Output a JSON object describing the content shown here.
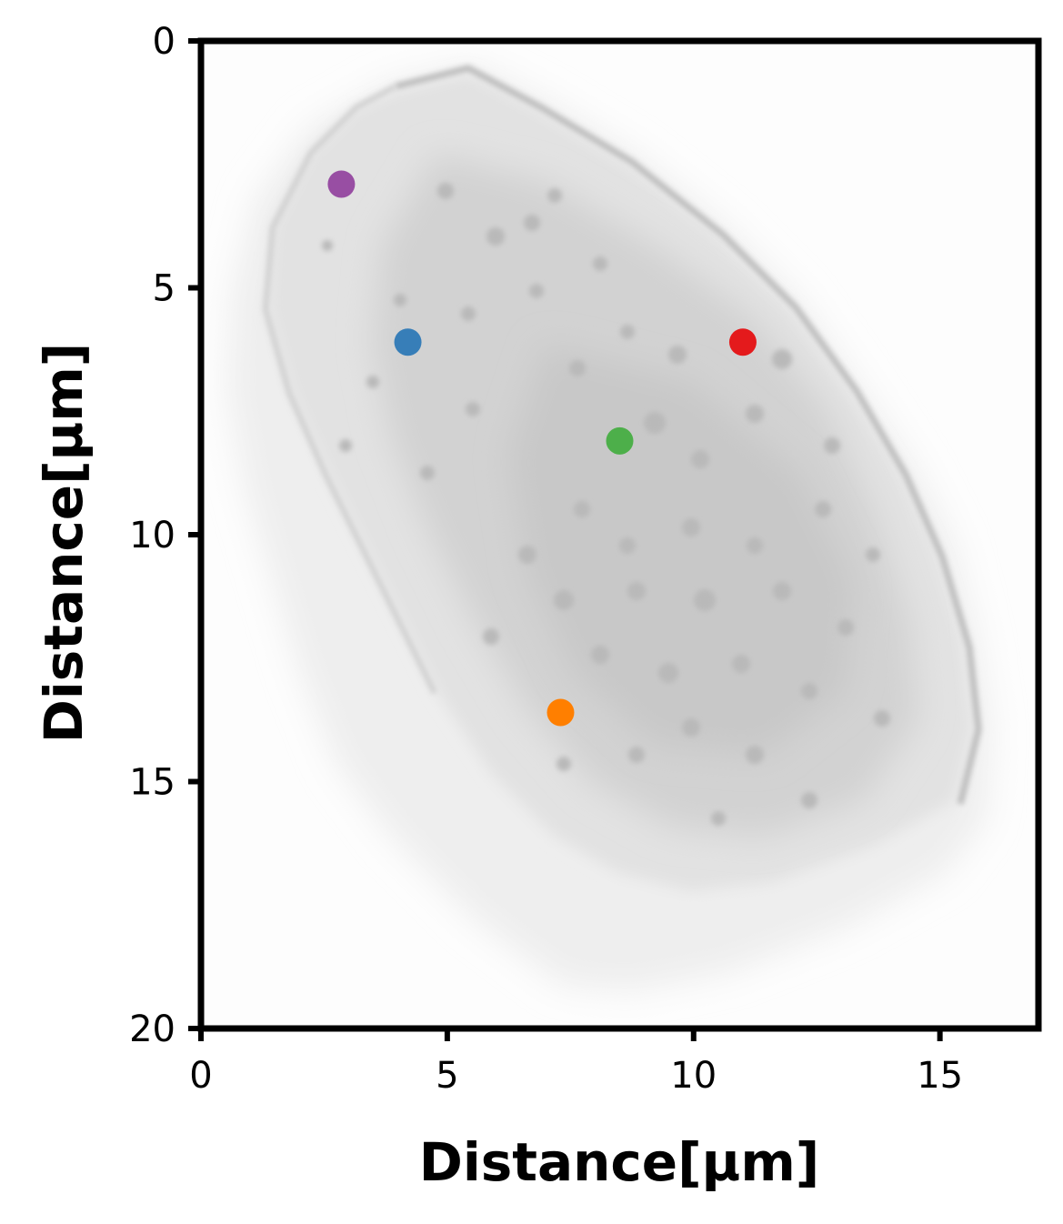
{
  "chart_data": {
    "type": "scatter",
    "title": "",
    "xlabel": "Distance[µm]",
    "ylabel": "Distance[µm]",
    "xlim": [
      0,
      17
    ],
    "ylim": [
      20,
      0
    ],
    "y_inverted": true,
    "x_ticks": [
      0,
      5,
      10,
      15
    ],
    "y_ticks": [
      0,
      5,
      10,
      15,
      20
    ],
    "grid": false,
    "legend": "none",
    "background": "grayscale fluorescence image of a cell",
    "points": [
      {
        "x": 2.85,
        "y": 2.9,
        "color": "#984ea3"
      },
      {
        "x": 4.2,
        "y": 6.1,
        "color": "#377eb8"
      },
      {
        "x": 11.0,
        "y": 6.1,
        "color": "#e41a1c"
      },
      {
        "x": 8.5,
        "y": 8.1,
        "color": "#4daf4a"
      },
      {
        "x": 7.3,
        "y": 13.6,
        "color": "#ff7f00"
      }
    ]
  }
}
